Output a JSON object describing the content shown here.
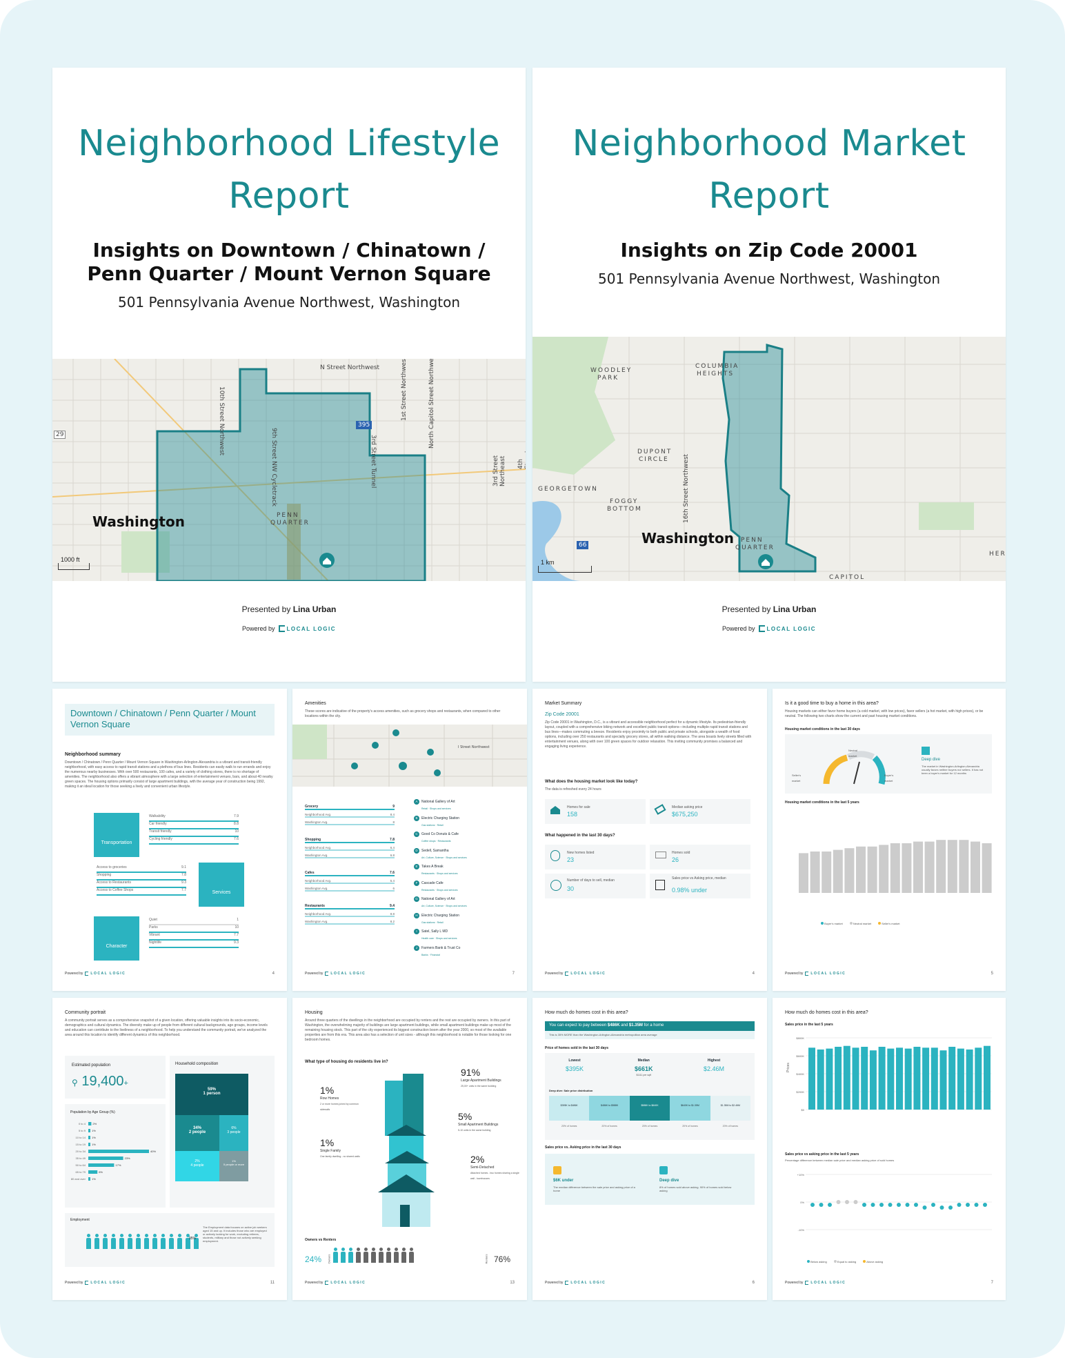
{
  "cover_lifestyle": {
    "title_line1": "Neighborhood Lifestyle",
    "title_line2": "Report",
    "subtitle_line1": "Insights on Downtown / Chinatown /",
    "subtitle_line2": "Penn Quarter / Mount Vernon Square",
    "address": "501 Pennsylvania Avenue Northwest, Washington",
    "map_city": "Washington",
    "map_scale": "1000 ft",
    "street_labels": [
      "N Street Northwest",
      "10th Street Northwest",
      "9th Street NW Cycletrack",
      "3rd Street Tunnel",
      "North Capitol Street Northwest",
      "1st Street Northwest",
      "3rd Street Northeast",
      "4th Street Northeast"
    ],
    "area_label_1": "PENN",
    "area_label_2": "QUARTER",
    "highway": "395",
    "highway2": "29",
    "presented_prefix": "Presented by",
    "presenter": "Lina Urban",
    "powered_by": "Powered by",
    "logo_text": "LOCAL LOGIC"
  },
  "cover_market": {
    "title_line1": "Neighborhood Market",
    "title_line2": "Report",
    "subtitle": "Insights on Zip Code 20001",
    "address": "501 Pennsylvania Avenue Northwest, Washington",
    "map_city": "Washington",
    "map_scale": "1 km",
    "area_labels": [
      "WOODLEY",
      "PARK",
      "COLUMBIA",
      "HEIGHTS",
      "DUPONT",
      "CIRCLE",
      "GEORGETOWN",
      "FOGGY",
      "BOTTOM",
      "PENN",
      "QUARTER",
      "CAPITOL",
      "HERI"
    ],
    "street_label": "16th Street Northwest",
    "highway": "66",
    "presented_prefix": "Presented by",
    "presenter": "Lina Urban",
    "powered_by": "Powered by",
    "logo_text": "LOCAL LOGIC"
  },
  "p_summary": {
    "title": "Downtown / Chinatown / Penn Quarter / Mount Vernon Square",
    "section": "Neighborhood summary",
    "body": "Downtown / Chinatown / Penn Quarter / Mount Vernon Square in Washington-Arlington-Alexandria is a vibrant and transit-friendly neighborhood, with easy access to rapid transit stations and a plethora of bus lines. Residents can easily walk to run errands and enjoy the numerous nearby businesses. With over 500 restaurants, 100 cafes, and a variety of clothing stores, there is no shortage of amenities. The neighborhood also offers a vibrant atmosphere with a large selection of entertainment venues, bars, and about 40 nearby green spaces. The housing options primarily consist of large apartment buildings, with the average year of construction being 1992, making it an ideal location for those seeking a lively and convenient urban lifestyle.",
    "transport_label": "Transportation",
    "transport_items": [
      {
        "label": "Walkability",
        "score": "7.9"
      },
      {
        "label": "Car friendly",
        "score": "8.8"
      },
      {
        "label": "Transit friendly",
        "score": "10"
      },
      {
        "label": "Cycling friendly",
        "score": "7.6"
      }
    ],
    "services_label": "Services",
    "services_items": [
      {
        "label": "Access to groceries",
        "score": "9.1"
      },
      {
        "label": "Shopping",
        "score": "7.8"
      },
      {
        "label": "Access to Restaurants",
        "score": "9.3"
      },
      {
        "label": "Access to Coffee Shops",
        "score": "7.7"
      }
    ],
    "character_label": "Character",
    "character_items": [
      {
        "label": "Quiet",
        "score": "1"
      },
      {
        "label": "Parks",
        "score": "10"
      },
      {
        "label": "Vibrant",
        "score": "7.7"
      },
      {
        "label": "Nightlife",
        "score": "9.3"
      }
    ],
    "page": "4"
  },
  "p_amenities": {
    "title": "Amenities",
    "body": "These scores are indicative of the property's access amenities, such as grocery shops and restaurants, when compared to other locations within the city.",
    "map_street": "I Street Northwest",
    "groups": [
      {
        "name": "Grocery",
        "score": "9",
        "rows": [
          {
            "label": "Neighborhood Avg.",
            "score": "8.4"
          },
          {
            "label": "Washington Avg.",
            "score": "8"
          }
        ]
      },
      {
        "name": "Shopping",
        "score": "7.8",
        "rows": [
          {
            "label": "Neighborhood Avg.",
            "score": "6.4"
          },
          {
            "label": "Washington Avg.",
            "score": "6.8"
          }
        ]
      },
      {
        "name": "Cafes",
        "score": "7.6",
        "rows": [
          {
            "label": "Neighborhood Avg.",
            "score": "5.4"
          },
          {
            "label": "Washington Avg.",
            "score": "6"
          }
        ]
      },
      {
        "name": "Restaurants",
        "score": "9.4",
        "rows": [
          {
            "label": "Neighborhood Avg.",
            "score": "8.8"
          },
          {
            "label": "Washington Avg.",
            "score": "8.2"
          }
        ]
      }
    ],
    "places": [
      {
        "letter": "A",
        "name": "National Gallery of Art",
        "tags": "Retail · Shops and services"
      },
      {
        "letter": "B",
        "name": "Electric Charging Station",
        "tags": "Gas stations · Retail"
      },
      {
        "letter": "C",
        "name": "Good Co Donuts & Cafe",
        "tags": "Coffee shops · Restaurants"
      },
      {
        "letter": "D",
        "name": "Sedell, Samantha",
        "tags": "Art, Culture, Science · Shops and services"
      },
      {
        "letter": "E",
        "name": "Takes A Break",
        "tags": "Restaurants · Shops and services"
      },
      {
        "letter": "F",
        "name": "Cascade Cafe",
        "tags": "Restaurants · Shops and services"
      },
      {
        "letter": "G",
        "name": "National Gallery of Art",
        "tags": "Art, Culture, Science · Shops and services"
      },
      {
        "letter": "H",
        "name": "Electric Charging Station",
        "tags": "Gas stations · Retail"
      },
      {
        "letter": "I",
        "name": "Satel, Sally L MD",
        "tags": "Health care · Shops and services"
      },
      {
        "letter": "J",
        "name": "Farmers Bank & Trust Co",
        "tags": "Banks · Financial"
      }
    ],
    "page": "7"
  },
  "p_market": {
    "title": "Market Summary",
    "zip": "Zip Code 20001",
    "body": "Zip Code 20001 in Washington, D.C., is a vibrant and accessible neighborhood perfect for a dynamic lifestyle. Its pedestrian-friendly layout, coupled with a comprehensive biking network and excellent public transit options—including multiple rapid transit stations and bus lines—makes commuting a breeze. Residents enjoy proximity to both public and private schools, alongside a wealth of food options, including over 250 restaurants and specialty grocery stores, all within walking distance. The area boasts lively streets filled with entertainment venues, along with over 100 green spaces for outdoor relaxation. This inviting community promises a balanced and engaging living experience.",
    "q1": "What does the housing market look like today?",
    "q1_note": "The data is refreshed every 24 hours",
    "homes_for_sale_label": "Homes for sale",
    "homes_for_sale": "158",
    "median_ask_label": "Median asking price",
    "median_ask": "$675,250",
    "q2": "What happened in the last 30 days?",
    "new_listed_label": "New homes listed",
    "new_listed": "23",
    "sold_label": "Homes sold",
    "sold": "26",
    "dom_label": "Number of days to sell, median",
    "dom": "30",
    "svs_label": "Sales price vs Asking price, median",
    "svs": "0.98% under",
    "page": "4"
  },
  "p_timing": {
    "title": "Is it a good time to buy a home in this area?",
    "body": "Housing markets can either favor home buyers (a cold market, with low prices), favor sellers (a hot market, with high prices), or be neutral. The following two charts show the current and past housing market conditions.",
    "gauge_title": "Housing market conditions in the last 30 days",
    "gauge_labels": [
      "Seller's market",
      "Neutral market",
      "Buyer's market"
    ],
    "deep_dive": "Deep dive",
    "deep_text": "The market in Washington-Arlington-Alexandria usually favors neither buyers nor sellers. It has not been a buyer's market for 12 months",
    "chart_title": "Housing market conditions in the last 5 years",
    "legend": [
      "Buyer's market",
      "Neutral market",
      "Seller's market"
    ],
    "page": "5"
  },
  "p_community": {
    "title": "Community portrait",
    "body": "A community portrait serves as a comprehensive snapshot of a given location, offering valuable insights into its socio-economic, demographics and cultural dynamics. The diversity make up of people from different cultural backgrounds, age groups, income levels and education can contribute to the liveliness of a neighborhood. To help you understand the community portrait, we've analyzed the area around this location to identify different dynamics of this neighborhood.",
    "pop_label": "Estimated population",
    "pop": "19,400",
    "pop_plus": "+",
    "age_title": "Population by Age Group (%)",
    "household_title": "Household composition",
    "household": [
      {
        "pct": "59%",
        "label": "1 person"
      },
      {
        "pct": "34%",
        "label": "2 people"
      },
      {
        "pct": "6%",
        "label": "3 people"
      },
      {
        "pct": "2%",
        "label": "4 people"
      },
      {
        "pct": "1%",
        "label": "5 people or more"
      }
    ],
    "employment_title": "Employment",
    "employment_pct": "95%",
    "employment_note": "The Employment data focuses on active job seekers aged 15 and up. It includes those who are employed or actively looking for work, excluding retirees, students, military and those not actively seeking employment.",
    "page": "11"
  },
  "p_housing": {
    "title": "Housing",
    "body": "Around three quarters of the dwellings in the neighborhood are occupied by renters and the rest are occupied by owners. In this part of Washington, the overwhelming majority of buildings are large apartment buildings, while small apartment buildings make up most of the remaining housing stock. This part of the city experienced its biggest construction boom after the year 2000, so most of the available properties are from this era. This area also has a selection of unit sizes - although this neighborhood is notable for those looking for one bedroom homes.",
    "q": "What type of housing do residents live in?",
    "types": [
      {
        "pct": "91%",
        "label": "Large Apartment Buildings",
        "note": "25,00+ units in the same building"
      },
      {
        "pct": "1%",
        "label": "Row Homes",
        "note": "2 or more homes joined by common sidewalls"
      },
      {
        "pct": "5%",
        "label": "Small Apartment Buildings",
        "note": "5-10 units in the same building"
      },
      {
        "pct": "1%",
        "label": "Single Family",
        "note": "One family dwelling - no shared walls"
      },
      {
        "pct": "2%",
        "label": "Semi-Detached",
        "note": "Attached homes - two homes sharing a single wall - townhouses"
      }
    ],
    "owners_renters_title": "Owners vs Renters",
    "owners_pct": "24%",
    "renters_pct": "76%",
    "owners_label": "Owners",
    "renters_label": "Renters",
    "page": "13"
  },
  "p_prices": {
    "title": "How much do homes cost in this area?",
    "banner_prefix": "You can expect to pay between",
    "banner_low": "$486K",
    "banner_and": "and",
    "banner_high": "$1.35M",
    "banner_suffix": "for a home",
    "banner_sub": "This is 35% MORE than the Washington-Arlington-Alexandria metropolitan area average",
    "sold_title": "Price of homes sold in the last 30 days",
    "lowest_label": "Lowest",
    "lowest": "$395K",
    "median_label": "Median",
    "median": "$661K",
    "median_sub": "$1111 per sqft",
    "highest_label": "Highest",
    "highest": "$2.46M",
    "dist_title": "Deep dive: Sale price distribution",
    "dist": [
      "$395K to $486K",
      "$486K to $588K",
      "$588K to $640K",
      "$640K to $1.35M",
      "$1.35M to $2.46M"
    ],
    "dist_pct": [
      "20% of homes",
      "20% of homes",
      "20% of homes",
      "20% of homes",
      "20% of homes"
    ],
    "svs_title": "Sales price vs. Asking price in the last 30 days",
    "svs_value": "$6K under",
    "svs_note": "The median difference between the sale price and asking price of a home",
    "deep_dive": "Deep dive",
    "deep_note": "8% of homes sold above asking. 90% of homes sold below asking",
    "page": "6"
  },
  "p_pricechart": {
    "title": "How much do homes cost in this area?",
    "c1_title": "Sales price in the last 5 years",
    "c1_ylabel": "Prices",
    "c1_yticks": [
      "$800K",
      "$600K",
      "$400K",
      "$200K",
      "$0"
    ],
    "c2_title": "Sales price vs asking price in the last 5 years",
    "c2_sub": "Percentage difference between median sale price and median asking price of sold homes",
    "c2_yticks": [
      "+10%",
      "0%",
      "-10%"
    ],
    "legend": [
      "Below asking",
      "Equal to asking",
      "Above asking"
    ],
    "page": "7"
  },
  "chart_data": [
    {
      "type": "bar",
      "title": "Housing market conditions in the last 5 years",
      "values": [
        48,
        50,
        50,
        52,
        54,
        56,
        56,
        58,
        60,
        60,
        62,
        62,
        64,
        64,
        64,
        62,
        60
      ],
      "ylim": [
        0,
        100
      ],
      "legend": [
        "Buyer's market",
        "Neutral market",
        "Seller's market"
      ]
    },
    {
      "type": "bar",
      "title": "Sales price in the last 5 years",
      "ylabel": "Prices",
      "values": [
        690,
        670,
        680,
        700,
        710,
        690,
        700,
        660,
        700,
        680,
        690,
        680,
        700,
        690,
        690,
        660,
        700,
        680,
        670,
        690,
        710
      ],
      "ylim": [
        0,
        800
      ]
    },
    {
      "type": "scatter",
      "title": "Sales price vs asking price in the last 5 years",
      "values": [
        -1,
        -1,
        -1,
        0,
        0,
        0,
        -1,
        -1,
        -1,
        -1,
        -1,
        -1,
        -1,
        -2,
        -1,
        -2,
        -2,
        -1,
        -1,
        -1,
        -1
      ],
      "ylim": [
        -10,
        10
      ],
      "legend": [
        "Below asking",
        "Equal to asking",
        "Above asking"
      ]
    }
  ],
  "colors": {
    "teal": "#1a8a8f",
    "accent": "#2bb3c0",
    "frame": "#e6f4f8",
    "gold": "#f5b82e"
  }
}
